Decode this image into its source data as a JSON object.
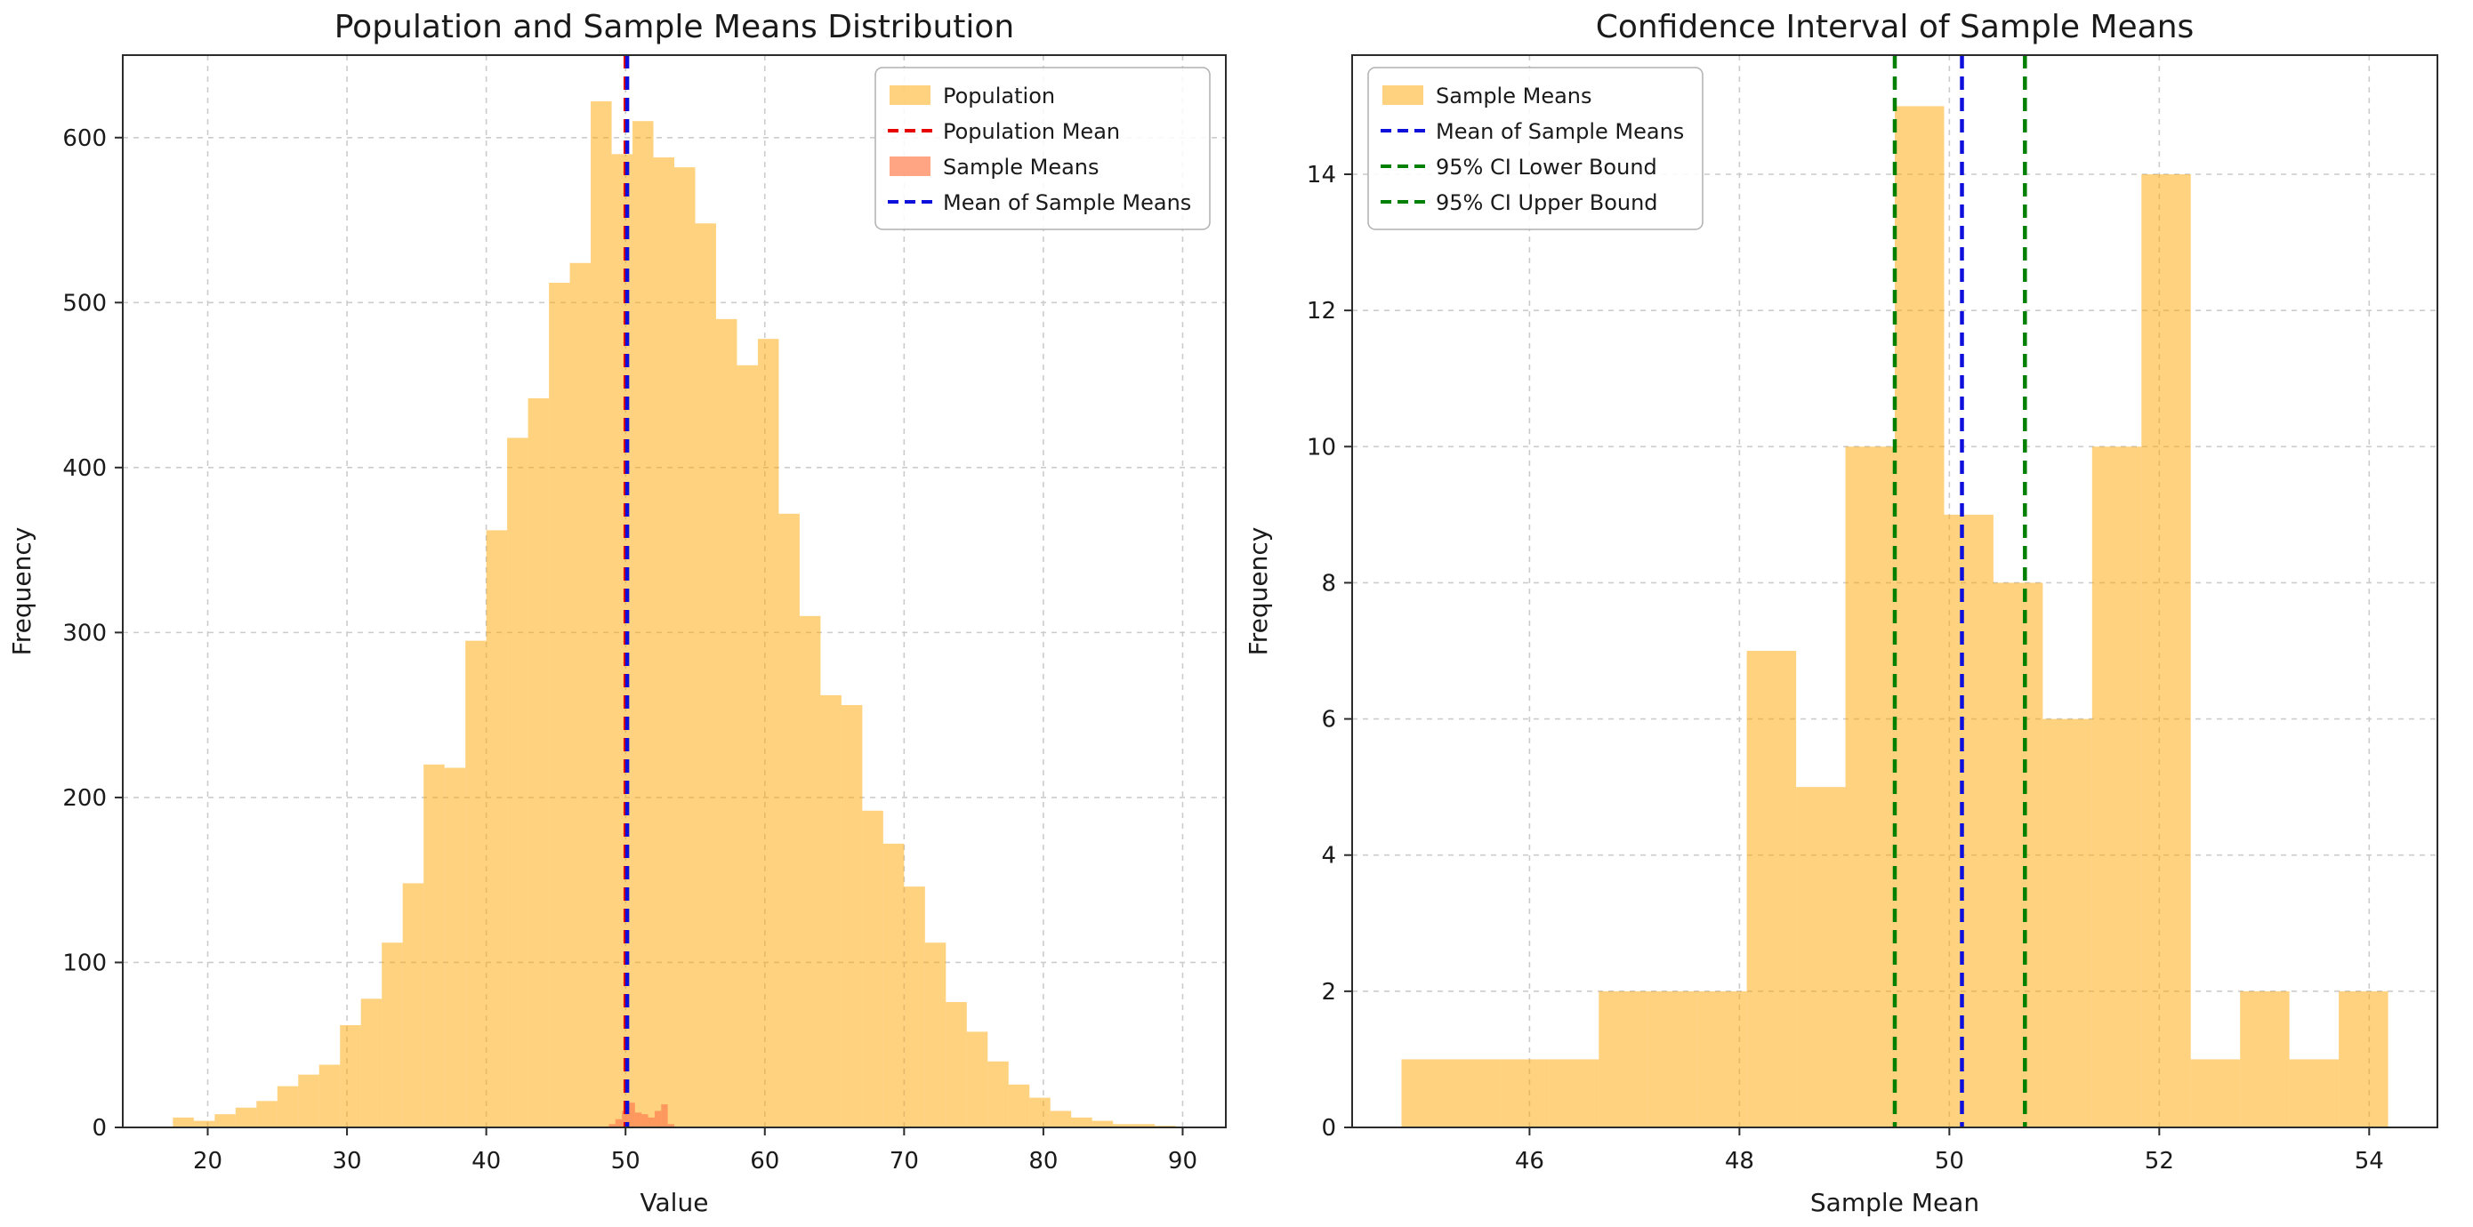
{
  "style": {
    "background": "#ffffff",
    "grid_color": "#cccccc",
    "spine_color": "#2b2b2b",
    "text_color": "#1a1a1a",
    "legend_border": "#b0b0b0"
  },
  "chart_data": [
    {
      "type": "histogram",
      "title": "Population and Sample Means Distribution",
      "xlabel": "Value",
      "ylabel": "Frequency",
      "xlim": [
        13.9,
        93.1
      ],
      "ylim": [
        0,
        650
      ],
      "xticks": [
        20,
        30,
        40,
        50,
        60,
        70,
        80,
        90
      ],
      "yticks": [
        0,
        100,
        200,
        300,
        400,
        500,
        600
      ],
      "grid": true,
      "legend_position": "top-right",
      "series": [
        {
          "name": "Population",
          "color": "#FFA500",
          "opacity": 0.5,
          "bin_start": 17.5,
          "bin_width": 1.5,
          "counts": [
            6,
            4,
            8,
            12,
            16,
            25,
            32,
            38,
            62,
            78,
            112,
            148,
            220,
            218,
            295,
            362,
            418,
            442,
            512,
            524,
            622,
            590,
            610,
            588,
            582,
            548,
            490,
            462,
            478,
            372,
            310,
            262,
            256,
            192,
            172,
            146,
            112,
            76,
            58,
            40,
            26,
            18,
            10,
            6,
            4,
            2,
            2,
            1
          ]
        },
        {
          "name": "Sample Means",
          "color": "#FF7F50",
          "opacity": 0.7,
          "bin_start": 48.8,
          "bin_width": 0.47,
          "counts": [
            2,
            5,
            10,
            15,
            9,
            8,
            6,
            10,
            14,
            2
          ]
        }
      ],
      "vlines": [
        {
          "name": "Population Mean",
          "x": 50.0,
          "color": "#E60000"
        },
        {
          "name": "Mean of Sample Means",
          "x": 50.12,
          "color": "#0F0FDC"
        }
      ],
      "legend": [
        {
          "label": "Population",
          "swatch": "patch",
          "color": "#FFA500",
          "opacity": 0.5
        },
        {
          "label": "Population Mean",
          "swatch": "dashed",
          "color": "#E60000"
        },
        {
          "label": "Sample Means",
          "swatch": "patch",
          "color": "#FF7F50",
          "opacity": 0.7
        },
        {
          "label": "Mean of Sample Means",
          "swatch": "dashed",
          "color": "#0F0FDC"
        }
      ]
    },
    {
      "type": "histogram",
      "title": "Confidence Interval of Sample Means",
      "xlabel": "Sample Mean",
      "ylabel": "Frequency",
      "xlim": [
        44.31,
        54.65
      ],
      "ylim": [
        0,
        15.75
      ],
      "xticks": [
        46,
        48,
        50,
        52,
        54
      ],
      "yticks": [
        0,
        2,
        4,
        6,
        8,
        10,
        12,
        14
      ],
      "grid": true,
      "legend_position": "top-left",
      "series": [
        {
          "name": "Sample Means",
          "color": "#FFA500",
          "opacity": 0.5,
          "bin_start": 44.78,
          "bin_width": 0.47,
          "counts": [
            1,
            1,
            1,
            1,
            2,
            2,
            2,
            7,
            5,
            10,
            15,
            9,
            8,
            6,
            10,
            14,
            1,
            2,
            1,
            2
          ]
        }
      ],
      "vlines": [
        {
          "name": "95% CI Lower Bound",
          "x": 49.48,
          "color": "#008000"
        },
        {
          "name": "Mean of Sample Means",
          "x": 50.12,
          "color": "#0F0FDC"
        },
        {
          "name": "95% CI Upper Bound",
          "x": 50.72,
          "color": "#008000"
        }
      ],
      "legend": [
        {
          "label": "Sample Means",
          "swatch": "patch",
          "color": "#FFA500",
          "opacity": 0.5
        },
        {
          "label": "Mean of Sample Means",
          "swatch": "dashed",
          "color": "#0F0FDC"
        },
        {
          "label": "95% CI Lower Bound",
          "swatch": "dashed",
          "color": "#008000"
        },
        {
          "label": "95% CI Upper Bound",
          "swatch": "dashed",
          "color": "#008000"
        }
      ]
    }
  ]
}
